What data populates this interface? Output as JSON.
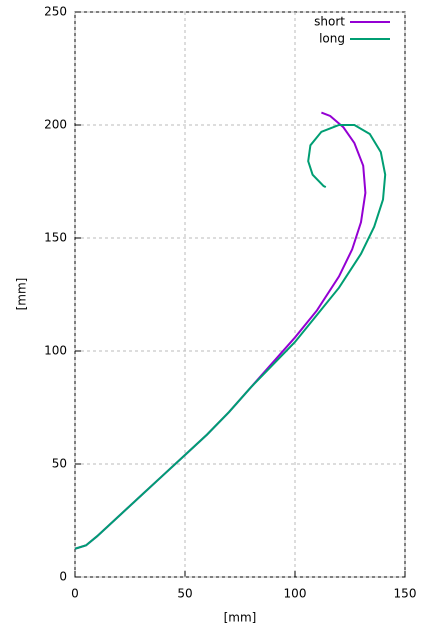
{
  "chart_data": {
    "type": "line",
    "xlabel": "[mm]",
    "ylabel": "[mm]",
    "xlim": [
      0,
      150
    ],
    "ylim": [
      0,
      250
    ],
    "xticks": [
      0,
      50,
      100,
      150
    ],
    "yticks": [
      0,
      50,
      100,
      150,
      200,
      250
    ],
    "grid": true,
    "legend": "top-right",
    "series": [
      {
        "name": "short",
        "color": "#9400d3",
        "x": [
          0,
          5,
          10,
          20,
          30,
          40,
          50,
          60,
          70,
          80,
          90,
          100,
          110,
          120,
          126,
          130,
          132,
          131,
          127,
          122,
          116,
          112
        ],
        "values": [
          12.5,
          14,
          18,
          27,
          36,
          45,
          54,
          63,
          73,
          84,
          95,
          106,
          118,
          133,
          145,
          157,
          170,
          182,
          192,
          199,
          204,
          205.5
        ]
      },
      {
        "name": "long",
        "color": "#009e73",
        "x": [
          0,
          5,
          10,
          20,
          30,
          40,
          50,
          60,
          70,
          80,
          90,
          100,
          110,
          120,
          130,
          136,
          140,
          141,
          139,
          134,
          127,
          120,
          112,
          107,
          106,
          108,
          113,
          114
        ],
        "values": [
          12.5,
          14,
          18,
          27,
          36,
          45,
          54,
          63,
          73,
          84,
          94,
          104,
          116,
          128,
          143,
          155,
          167,
          178,
          188,
          196,
          200,
          200,
          197,
          191,
          184,
          178,
          173,
          172.5
        ]
      }
    ]
  }
}
